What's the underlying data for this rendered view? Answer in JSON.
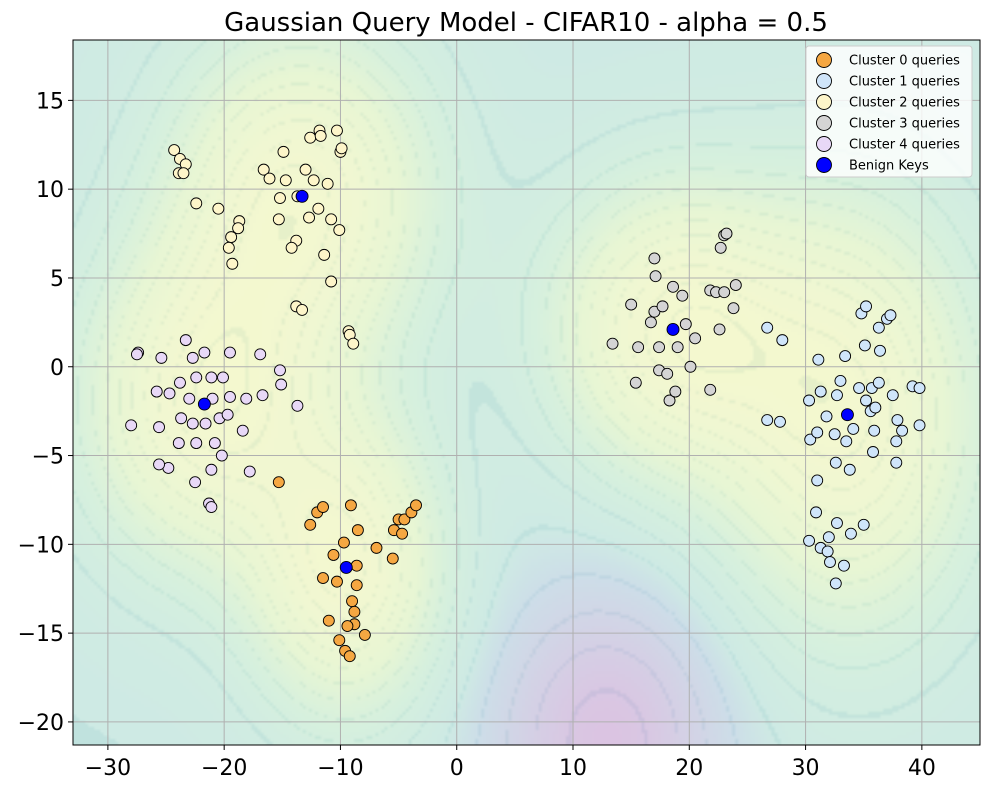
{
  "chart_data": {
    "type": "scatter",
    "title": "Gaussian Query Model - CIFAR10 - alpha = 0.5",
    "xlabel": "",
    "ylabel": "",
    "xlim": [
      -33,
      45
    ],
    "ylim": [
      -21.3,
      18.4
    ],
    "xticks": [
      -30,
      -20,
      -10,
      0,
      10,
      20,
      30,
      40
    ],
    "yticks": [
      -20,
      -15,
      -10,
      -5,
      0,
      5,
      10,
      15
    ],
    "xtick_labels": [
      "−30",
      "−20",
      "−10",
      "0",
      "10",
      "20",
      "30",
      "40"
    ],
    "ytick_labels": [
      "−20",
      "−15",
      "−10",
      "−5",
      "0",
      "5",
      "10",
      "15"
    ],
    "grid": true,
    "legend_position": "top-right",
    "background": "gaussian density contour field",
    "colors": {
      "cluster0": "#f5a742",
      "cluster1": "#cfe5fa",
      "cluster2": "#fdf5c9",
      "cluster3": "#d4d4d4",
      "cluster4": "#e8d8f7",
      "benign": "#0000ff",
      "contour_low": "#9ad6c6",
      "contour_high": "#f5f7c8",
      "contour_deep": "#d9bfe0"
    },
    "series": [
      {
        "name": "Cluster 0 queries",
        "color": "#f5a742",
        "points": [
          [
            -15.3,
            -6.5
          ],
          [
            -12.6,
            -8.9
          ],
          [
            -12.0,
            -8.2
          ],
          [
            -11.5,
            -7.9
          ],
          [
            -9.1,
            -7.8
          ],
          [
            -8.5,
            -9.2
          ],
          [
            -9.7,
            -9.9
          ],
          [
            -10.6,
            -10.6
          ],
          [
            -11.5,
            -11.9
          ],
          [
            -10.3,
            -12.1
          ],
          [
            -8.6,
            -11.2
          ],
          [
            -8.6,
            -12.3
          ],
          [
            -9.0,
            -13.2
          ],
          [
            -8.8,
            -13.8
          ],
          [
            -11.0,
            -14.3
          ],
          [
            -8.8,
            -14.5
          ],
          [
            -9.4,
            -14.6
          ],
          [
            -10.1,
            -15.4
          ],
          [
            -7.9,
            -15.1
          ],
          [
            -9.6,
            -16.0
          ],
          [
            -9.2,
            -16.3
          ],
          [
            -6.9,
            -10.2
          ],
          [
            -5.5,
            -10.8
          ],
          [
            -5.4,
            -9.2
          ],
          [
            -5.0,
            -8.6
          ],
          [
            -4.5,
            -8.6
          ],
          [
            -4.7,
            -9.4
          ],
          [
            -3.9,
            -8.2
          ],
          [
            -3.5,
            -7.8
          ]
        ]
      },
      {
        "name": "Cluster 1 queries",
        "color": "#cfe5fa",
        "points": [
          [
            26.7,
            -3.0
          ],
          [
            27.8,
            -3.1
          ],
          [
            26.7,
            2.2
          ],
          [
            28.0,
            1.5
          ],
          [
            30.3,
            -1.9
          ],
          [
            31.3,
            -1.4
          ],
          [
            30.4,
            -4.1
          ],
          [
            31.0,
            -3.7
          ],
          [
            31.8,
            -2.8
          ],
          [
            31.1,
            0.4
          ],
          [
            32.7,
            -1.6
          ],
          [
            32.5,
            -3.8
          ],
          [
            33.0,
            -0.8
          ],
          [
            33.4,
            0.6
          ],
          [
            33.5,
            -4.2
          ],
          [
            33.8,
            -5.8
          ],
          [
            32.6,
            -5.4
          ],
          [
            31.0,
            -6.4
          ],
          [
            32.0,
            -9.6
          ],
          [
            30.9,
            -8.2
          ],
          [
            32.7,
            -8.8
          ],
          [
            30.3,
            -9.8
          ],
          [
            31.3,
            -10.2
          ],
          [
            31.9,
            -10.4
          ],
          [
            32.1,
            -11.0
          ],
          [
            32.6,
            -12.2
          ],
          [
            33.3,
            -11.2
          ],
          [
            33.9,
            -9.4
          ],
          [
            35.0,
            -8.9
          ],
          [
            34.1,
            -3.5
          ],
          [
            34.6,
            -1.2
          ],
          [
            35.1,
            1.2
          ],
          [
            34.8,
            3.0
          ],
          [
            35.2,
            3.4
          ],
          [
            35.2,
            -1.9
          ],
          [
            35.7,
            -1.2
          ],
          [
            35.6,
            -2.5
          ],
          [
            35.9,
            -3.6
          ],
          [
            36.0,
            -2.3
          ],
          [
            36.3,
            -0.9
          ],
          [
            36.4,
            0.9
          ],
          [
            36.3,
            2.2
          ],
          [
            37.0,
            2.7
          ],
          [
            37.3,
            2.9
          ],
          [
            37.5,
            -1.6
          ],
          [
            35.8,
            -4.8
          ],
          [
            37.8,
            -5.4
          ],
          [
            37.8,
            -4.2
          ],
          [
            37.9,
            -3.0
          ],
          [
            38.3,
            -3.6
          ],
          [
            39.2,
            -1.1
          ],
          [
            39.8,
            -1.2
          ],
          [
            39.8,
            -3.3
          ]
        ]
      },
      {
        "name": "Cluster 2 queries",
        "color": "#fdf5c9",
        "points": [
          [
            -24.3,
            12.2
          ],
          [
            -23.8,
            11.7
          ],
          [
            -23.3,
            11.4
          ],
          [
            -23.9,
            10.9
          ],
          [
            -23.5,
            10.9
          ],
          [
            -22.4,
            9.2
          ],
          [
            -20.5,
            8.9
          ],
          [
            -18.7,
            8.2
          ],
          [
            -18.8,
            7.8
          ],
          [
            -19.4,
            7.3
          ],
          [
            -19.6,
            6.7
          ],
          [
            -19.3,
            5.8
          ],
          [
            -16.6,
            11.1
          ],
          [
            -16.1,
            10.6
          ],
          [
            -14.9,
            12.1
          ],
          [
            -13.0,
            11.1
          ],
          [
            -12.6,
            12.9
          ],
          [
            -11.8,
            13.3
          ],
          [
            -11.7,
            13.0
          ],
          [
            -10.3,
            13.3
          ],
          [
            -10.0,
            12.1
          ],
          [
            -9.9,
            12.3
          ],
          [
            -12.3,
            10.5
          ],
          [
            -11.1,
            10.3
          ],
          [
            -14.7,
            10.5
          ],
          [
            -13.7,
            9.6
          ],
          [
            -15.2,
            9.5
          ],
          [
            -12.7,
            8.4
          ],
          [
            -11.9,
            8.9
          ],
          [
            -10.8,
            8.3
          ],
          [
            -15.3,
            8.3
          ],
          [
            -10.1,
            7.7
          ],
          [
            -13.8,
            7.1
          ],
          [
            -14.2,
            6.7
          ],
          [
            -11.4,
            6.3
          ],
          [
            -10.8,
            4.8
          ],
          [
            -13.8,
            3.4
          ],
          [
            -13.3,
            3.2
          ],
          [
            -9.3,
            2.0
          ],
          [
            -9.2,
            1.8
          ],
          [
            -8.9,
            1.3
          ]
        ]
      },
      {
        "name": "Cluster 3 queries",
        "color": "#d4d4d4",
        "points": [
          [
            13.4,
            1.3
          ],
          [
            15.0,
            3.5
          ],
          [
            15.4,
            -0.9
          ],
          [
            15.6,
            1.1
          ],
          [
            16.7,
            2.5
          ],
          [
            17.0,
            3.1
          ],
          [
            17.0,
            6.1
          ],
          [
            17.1,
            5.1
          ],
          [
            17.4,
            1.1
          ],
          [
            17.4,
            -0.2
          ],
          [
            17.7,
            3.4
          ],
          [
            18.1,
            -0.4
          ],
          [
            18.3,
            -1.9
          ],
          [
            18.6,
            4.5
          ],
          [
            18.8,
            -1.4
          ],
          [
            19.0,
            1.1
          ],
          [
            19.4,
            4.0
          ],
          [
            19.7,
            2.4
          ],
          [
            20.1,
            0.0
          ],
          [
            20.5,
            1.6
          ],
          [
            21.8,
            4.3
          ],
          [
            22.3,
            4.2
          ],
          [
            21.8,
            -1.3
          ],
          [
            22.7,
            6.7
          ],
          [
            23.0,
            7.4
          ],
          [
            23.2,
            7.5
          ],
          [
            23.0,
            4.2
          ],
          [
            22.6,
            2.1
          ],
          [
            23.8,
            3.3
          ],
          [
            24.0,
            4.6
          ]
        ]
      },
      {
        "name": "Cluster 4 queries",
        "color": "#e8d8f7",
        "points": [
          [
            -27.4,
            0.8
          ],
          [
            -27.5,
            0.7
          ],
          [
            -25.4,
            0.5
          ],
          [
            -23.3,
            1.5
          ],
          [
            -22.7,
            0.5
          ],
          [
            -21.7,
            0.8
          ],
          [
            -19.5,
            0.8
          ],
          [
            -16.9,
            0.7
          ],
          [
            -25.8,
            -1.4
          ],
          [
            -24.7,
            -1.5
          ],
          [
            -23.8,
            -0.9
          ],
          [
            -23.0,
            -1.8
          ],
          [
            -22.4,
            -0.6
          ],
          [
            -21.1,
            -0.6
          ],
          [
            -20.1,
            -0.6
          ],
          [
            -21.0,
            -1.8
          ],
          [
            -19.5,
            -1.7
          ],
          [
            -18.1,
            -1.8
          ],
          [
            -16.7,
            -1.6
          ],
          [
            -15.1,
            -1.0
          ],
          [
            -15.2,
            -0.2
          ],
          [
            -13.7,
            -2.2
          ],
          [
            -23.7,
            -2.9
          ],
          [
            -22.7,
            -3.2
          ],
          [
            -21.6,
            -3.2
          ],
          [
            -20.4,
            -2.9
          ],
          [
            -19.7,
            -2.7
          ],
          [
            -18.4,
            -3.6
          ],
          [
            -25.6,
            -3.4
          ],
          [
            -28.0,
            -3.3
          ],
          [
            -23.9,
            -4.3
          ],
          [
            -22.4,
            -4.3
          ],
          [
            -20.8,
            -4.3
          ],
          [
            -20.2,
            -5.0
          ],
          [
            -21.1,
            -5.8
          ],
          [
            -24.8,
            -5.7
          ],
          [
            -25.6,
            -5.5
          ],
          [
            -22.5,
            -6.5
          ],
          [
            -17.8,
            -5.9
          ],
          [
            -21.3,
            -7.7
          ],
          [
            -21.1,
            -7.9
          ]
        ]
      },
      {
        "name": "Benign Keys",
        "color": "#0000ff",
        "points": [
          [
            -13.3,
            9.6
          ],
          [
            -21.7,
            -2.1
          ],
          [
            -9.5,
            -11.3
          ],
          [
            18.6,
            2.1
          ],
          [
            33.6,
            -2.7
          ]
        ]
      }
    ],
    "density_centers": [
      {
        "x": -13.3,
        "y": 9.6,
        "sx": 7.5,
        "sy": 6.2
      },
      {
        "x": -21.7,
        "y": -2.1,
        "sx": 7.0,
        "sy": 6.0
      },
      {
        "x": -9.5,
        "y": -11.3,
        "sx": 5.5,
        "sy": 5.5
      },
      {
        "x": 18.6,
        "y": 2.1,
        "sx": 7.0,
        "sy": 5.5
      },
      {
        "x": 33.6,
        "y": -2.7,
        "sx": 7.5,
        "sy": 8.0
      }
    ]
  }
}
